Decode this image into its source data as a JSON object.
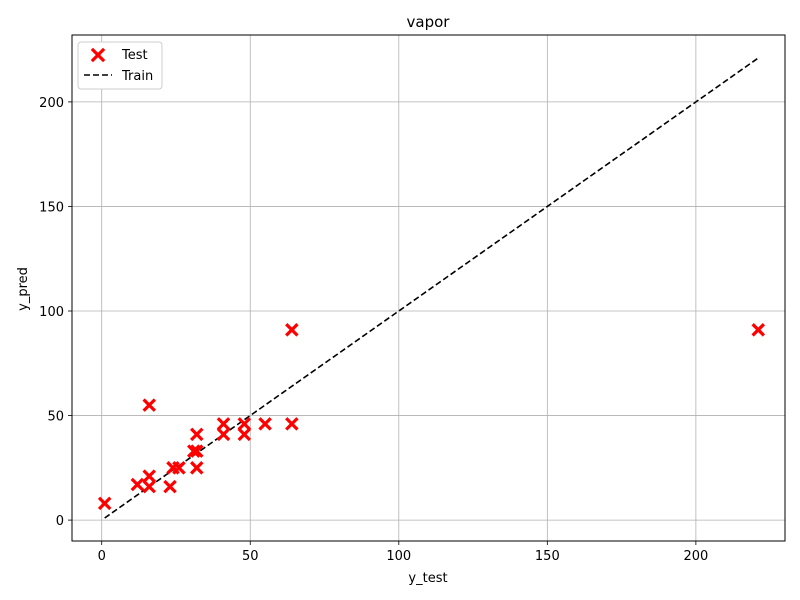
{
  "chart_data": {
    "type": "scatter",
    "title": "vapor",
    "xlabel": "y_test",
    "ylabel": "y_pred",
    "xlim": [
      -10,
      230
    ],
    "ylim": [
      -10,
      232
    ],
    "xticks": [
      0,
      50,
      100,
      150,
      200
    ],
    "yticks": [
      0,
      50,
      100,
      150,
      200
    ],
    "grid": true,
    "legend_position": "top-left",
    "series": [
      {
        "name": "Test",
        "kind": "scatter",
        "marker": "x",
        "color": "#ff0000",
        "points": [
          {
            "x": 1,
            "y": 8
          },
          {
            "x": 12,
            "y": 17
          },
          {
            "x": 16,
            "y": 16
          },
          {
            "x": 16,
            "y": 21
          },
          {
            "x": 16,
            "y": 55
          },
          {
            "x": 23,
            "y": 16
          },
          {
            "x": 24,
            "y": 25
          },
          {
            "x": 26,
            "y": 25
          },
          {
            "x": 31,
            "y": 33
          },
          {
            "x": 32,
            "y": 25
          },
          {
            "x": 32,
            "y": 33
          },
          {
            "x": 32,
            "y": 41
          },
          {
            "x": 41,
            "y": 41
          },
          {
            "x": 41,
            "y": 46
          },
          {
            "x": 48,
            "y": 41
          },
          {
            "x": 48,
            "y": 46
          },
          {
            "x": 55,
            "y": 46
          },
          {
            "x": 64,
            "y": 46
          },
          {
            "x": 64,
            "y": 91
          },
          {
            "x": 221,
            "y": 91
          }
        ]
      },
      {
        "name": "Train",
        "kind": "line",
        "dash": "dashed",
        "color": "#000000",
        "points": [
          {
            "x": 1,
            "y": 1
          },
          {
            "x": 221,
            "y": 221
          }
        ]
      }
    ]
  }
}
